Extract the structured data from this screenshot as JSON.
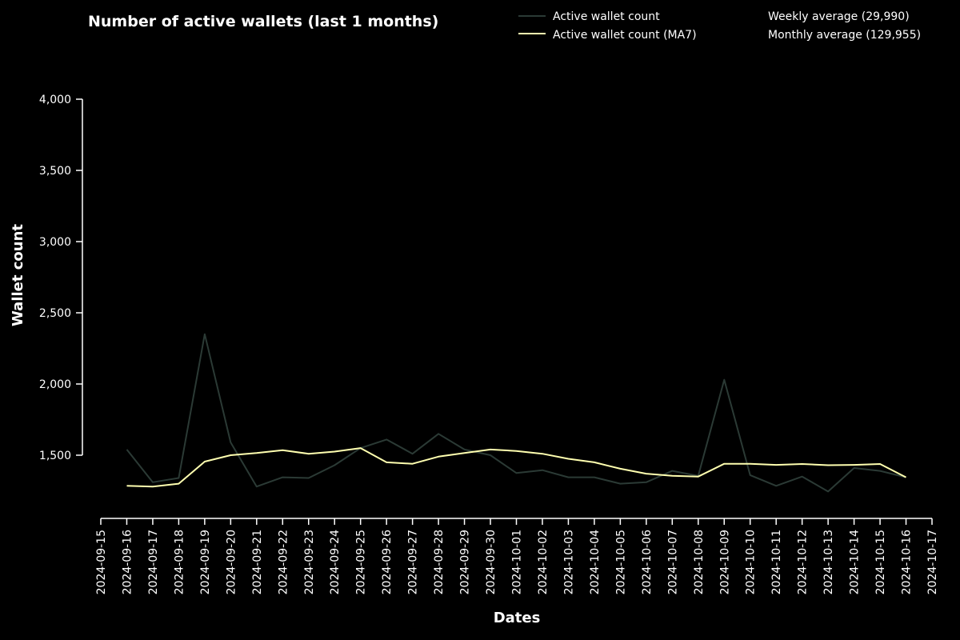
{
  "chart_data": {
    "type": "line",
    "title": "Number of active wallets (last 1 months)",
    "xlabel": "Dates",
    "ylabel": "Wallet count",
    "ylim": [
      1000,
      4000
    ],
    "xlim": [
      "2024-09-15",
      "2024-10-17"
    ],
    "y_ticks": [
      1500,
      2000,
      2500,
      3000,
      3500,
      4000
    ],
    "y_tick_labels": [
      "1,500",
      "2,000",
      "2,500",
      "3,000",
      "3,500",
      "4,000"
    ],
    "x_ticks": [
      "2024-09-15",
      "2024-09-16",
      "2024-09-17",
      "2024-09-18",
      "2024-09-19",
      "2024-09-20",
      "2024-09-21",
      "2024-09-22",
      "2024-09-23",
      "2024-09-24",
      "2024-09-25",
      "2024-09-26",
      "2024-09-27",
      "2024-09-28",
      "2024-09-29",
      "2024-09-30",
      "2024-10-01",
      "2024-10-02",
      "2024-10-03",
      "2024-10-04",
      "2024-10-05",
      "2024-10-06",
      "2024-10-07",
      "2024-10-08",
      "2024-10-09",
      "2024-10-10",
      "2024-10-11",
      "2024-10-12",
      "2024-10-13",
      "2024-10-14",
      "2024-10-15",
      "2024-10-16",
      "2024-10-17"
    ],
    "grid": false,
    "legend_position": "top-right",
    "x": [
      "2024-09-16",
      "2024-09-17",
      "2024-09-18",
      "2024-09-19",
      "2024-09-20",
      "2024-09-21",
      "2024-09-22",
      "2024-09-23",
      "2024-09-24",
      "2024-09-25",
      "2024-09-26",
      "2024-09-27",
      "2024-09-28",
      "2024-09-29",
      "2024-09-30",
      "2024-10-01",
      "2024-10-02",
      "2024-10-03",
      "2024-10-04",
      "2024-10-05",
      "2024-10-06",
      "2024-10-07",
      "2024-10-08",
      "2024-10-09",
      "2024-10-10",
      "2024-10-11",
      "2024-10-12",
      "2024-10-13",
      "2024-10-14",
      "2024-10-15",
      "2024-10-16"
    ],
    "series": [
      {
        "name": "Active wallet count",
        "color": "#2b3a35",
        "values": [
          1540,
          1310,
          1340,
          2350,
          1590,
          1280,
          1345,
          1340,
          1430,
          1550,
          1610,
          1510,
          1650,
          1540,
          1500,
          1375,
          1395,
          1345,
          1345,
          1300,
          1310,
          1390,
          1355,
          2030,
          1360,
          1285,
          1350,
          1245,
          1410,
          1390,
          1345
        ]
      },
      {
        "name": "Active wallet count (MA7)",
        "color": "#ffffb0",
        "values": [
          1285,
          1280,
          1300,
          1455,
          1500,
          1515,
          1535,
          1510,
          1525,
          1550,
          1450,
          1440,
          1490,
          1515,
          1540,
          1530,
          1510,
          1475,
          1450,
          1405,
          1370,
          1355,
          1350,
          1440,
          1440,
          1432,
          1438,
          1430,
          1432,
          1438,
          1345
        ]
      }
    ],
    "annotations": [
      "Weekly average (29,990)",
      "Monthly average (129,955)"
    ]
  }
}
